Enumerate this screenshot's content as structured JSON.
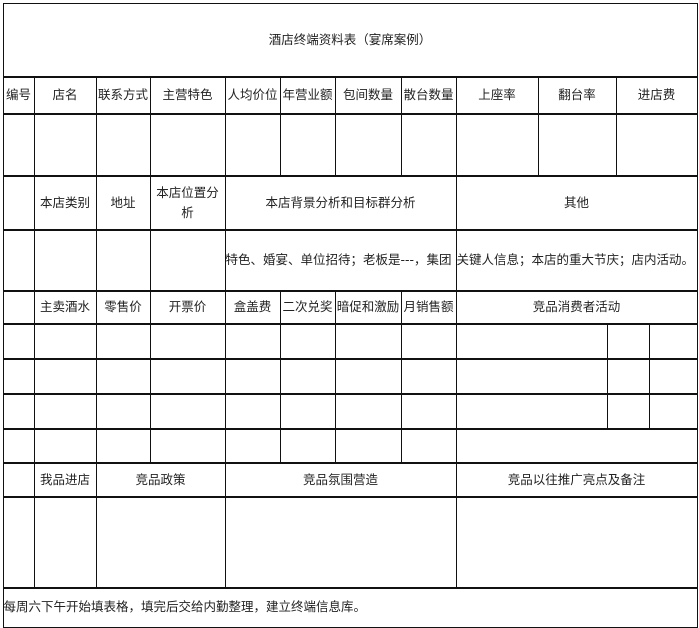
{
  "title": "酒店终端资料表（宴席案例）",
  "basic_headers": [
    "编号",
    "店名",
    "联系方式",
    "主营特色",
    "人均价位",
    "年营业额",
    "包间数量",
    "散台数量",
    "上座率",
    "翻台率",
    "进店费"
  ],
  "analysis_headers": {
    "category": "本店类别",
    "address": "地址",
    "location": "本店位置分析",
    "background": "本店背景分析和目标群分析",
    "other": "其他"
  },
  "analysis_values": {
    "background": "特色、婚宴、单位招待；老板是---，集团",
    "other": "关键人信息；本店的重大节庆；店内活动。"
  },
  "sales_headers": [
    "主卖酒水",
    "零售价",
    "开票价",
    "盒盖费",
    "二次兑奖",
    "暗促和激励",
    "月销售额",
    "竞品消费者活动"
  ],
  "competitor_headers": {
    "our_entry": "我品进店",
    "policy": "竞品政策",
    "atmosphere": "竞品氛围营造",
    "highlights": "竞品以往推广亮点及备注"
  },
  "footer_note": "每周六下午开始填表格，填完后交给内勤整理，建立终端信息库。"
}
